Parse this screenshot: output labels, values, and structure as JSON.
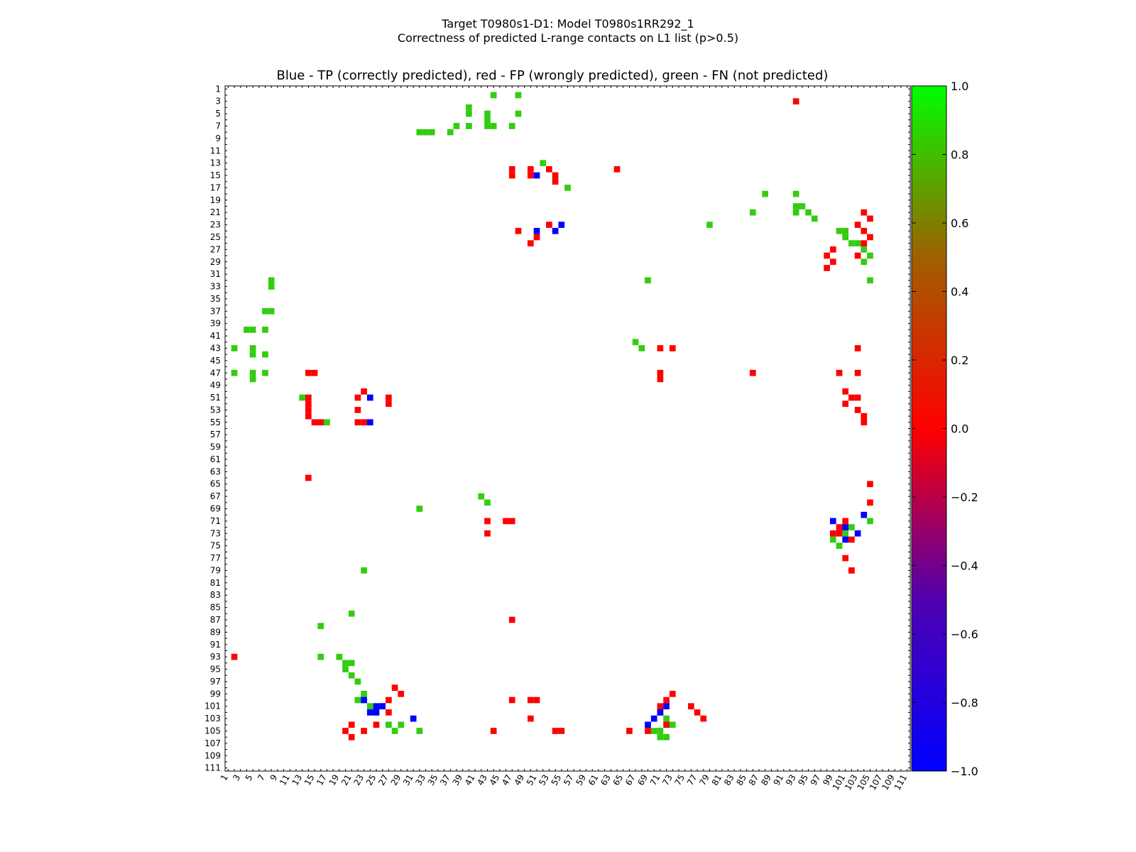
{
  "suptitle": [
    "Target T0980s1-D1: Model T0980s1RR292_1",
    "Correctness of predicted L-range contacts on L1 list (p>0.5)"
  ],
  "chart_data": {
    "type": "heatmap",
    "title": "Blue - TP (correctly predicted), red - FP (wrongly predicted), green - FN (not predicted)",
    "n": 111,
    "xlabel": "",
    "ylabel": "",
    "x_ticks": [
      1,
      3,
      5,
      7,
      9,
      11,
      13,
      15,
      17,
      19,
      21,
      23,
      25,
      27,
      29,
      31,
      33,
      35,
      37,
      39,
      41,
      43,
      45,
      47,
      49,
      51,
      53,
      55,
      57,
      59,
      61,
      63,
      65,
      67,
      69,
      71,
      73,
      75,
      77,
      79,
      81,
      83,
      85,
      87,
      89,
      91,
      93,
      95,
      97,
      99,
      101,
      103,
      105,
      107,
      109,
      111
    ],
    "y_ticks": [
      1,
      3,
      5,
      7,
      9,
      11,
      13,
      15,
      17,
      19,
      21,
      23,
      25,
      27,
      29,
      31,
      33,
      35,
      37,
      39,
      41,
      43,
      45,
      47,
      49,
      51,
      53,
      55,
      57,
      59,
      61,
      63,
      65,
      67,
      69,
      71,
      73,
      75,
      77,
      79,
      81,
      83,
      85,
      87,
      89,
      91,
      93,
      95,
      97,
      99,
      101,
      103,
      105,
      107,
      109,
      111
    ],
    "colorbar": {
      "range": [
        -1.0,
        1.0
      ],
      "ticks": [
        "1.0",
        "0.8",
        "0.6",
        "0.4",
        "0.2",
        "0.0",
        "−0.2",
        "−0.4",
        "−0.6",
        "−0.8",
        "−1.0"
      ]
    },
    "legend": {
      "TP": "blue (-1.0)",
      "FP": "red (0.0)",
      "FN": "green (1.0)"
    },
    "TP": [
      [
        15,
        51
      ],
      [
        23,
        55
      ],
      [
        24,
        51
      ],
      [
        24,
        54
      ],
      [
        51,
        24
      ],
      [
        55,
        24
      ],
      [
        101,
        25
      ],
      [
        102,
        24
      ],
      [
        100,
        23
      ],
      [
        103,
        31
      ],
      [
        102,
        25
      ],
      [
        101,
        26
      ],
      [
        71,
        99
      ],
      [
        70,
        104
      ],
      [
        73,
        103
      ],
      [
        74,
        101
      ],
      [
        72,
        101
      ],
      [
        101,
        72
      ],
      [
        102,
        71
      ],
      [
        103,
        70
      ],
      [
        104,
        69
      ]
    ],
    "FP": [
      [
        3,
        93
      ],
      [
        14,
        47
      ],
      [
        14,
        50
      ],
      [
        15,
        47
      ],
      [
        15,
        50
      ],
      [
        14,
        53
      ],
      [
        15,
        54
      ],
      [
        14,
        64
      ],
      [
        16,
        54
      ],
      [
        22,
        105
      ],
      [
        23,
        103
      ],
      [
        24,
        48
      ],
      [
        25,
        51
      ],
      [
        23,
        53
      ],
      [
        26,
        50
      ],
      [
        27,
        99
      ],
      [
        28,
        98
      ],
      [
        29,
        99
      ],
      [
        30,
        98
      ],
      [
        24,
        104
      ],
      [
        25,
        105
      ],
      [
        26,
        104
      ],
      [
        28,
        103
      ],
      [
        21,
        104
      ],
      [
        43,
        71
      ],
      [
        43,
        73
      ],
      [
        43,
        103
      ],
      [
        47,
        71
      ],
      [
        47,
        86
      ],
      [
        48,
        71
      ],
      [
        47,
        100
      ],
      [
        50,
        23
      ],
      [
        51,
        22
      ],
      [
        51,
        27
      ],
      [
        52,
        27
      ],
      [
        47,
        14
      ],
      [
        47,
        15
      ],
      [
        51,
        14
      ],
      [
        52,
        14
      ],
      [
        53,
        14
      ],
      [
        54,
        14
      ],
      [
        55,
        15
      ],
      [
        55,
        16
      ],
      [
        55,
        22
      ],
      [
        53,
        22
      ],
      [
        55,
        23
      ],
      [
        64,
        14
      ],
      [
        65,
        105
      ],
      [
        68,
        105
      ],
      [
        71,
        43
      ],
      [
        71,
        46
      ],
      [
        71,
        47
      ],
      [
        73,
        43
      ],
      [
        72,
        100
      ],
      [
        73,
        99
      ],
      [
        71,
        101
      ],
      [
        74,
        102
      ],
      [
        73,
        100
      ],
      [
        77,
        101
      ],
      [
        79,
        102
      ],
      [
        87,
        47
      ],
      [
        93,
        2
      ],
      [
        98,
        28
      ],
      [
        99,
        29
      ],
      [
        100,
        27
      ],
      [
        101,
        26
      ],
      [
        102,
        27
      ],
      [
        104,
        25
      ],
      [
        105,
        20
      ],
      [
        106,
        21
      ],
      [
        105,
        23
      ],
      [
        104,
        21
      ],
      [
        100,
        47
      ],
      [
        100,
        50
      ],
      [
        100,
        51
      ],
      [
        103,
        50
      ],
      [
        105,
        44
      ],
      [
        105,
        54
      ],
      [
        105,
        55
      ],
      [
        100,
        72
      ],
      [
        99,
        73
      ],
      [
        101,
        71
      ],
      [
        102,
        71
      ],
      [
        101,
        76
      ],
      [
        102,
        77
      ],
      [
        103,
        78
      ],
      [
        105,
        66
      ],
      [
        105,
        69
      ],
      [
        104,
        72
      ],
      [
        50,
        101
      ],
      [
        51,
        102
      ],
      [
        52,
        101
      ],
      [
        55,
        104
      ],
      [
        53,
        103
      ],
      [
        54,
        104
      ],
      [
        47,
        103
      ],
      [
        51,
        103
      ]
    ],
    "FN": [
      [
        2,
        44
      ],
      [
        2,
        48
      ],
      [
        5,
        40
      ],
      [
        5,
        43
      ],
      [
        5,
        48
      ],
      [
        4,
        40
      ],
      [
        6,
        43
      ],
      [
        7,
        38
      ],
      [
        7,
        40
      ],
      [
        7,
        43
      ],
      [
        7,
        44
      ],
      [
        7,
        47
      ],
      [
        8,
        32
      ],
      [
        8,
        33
      ],
      [
        8,
        34
      ],
      [
        8,
        37
      ],
      [
        13,
        52
      ],
      [
        17,
        56
      ],
      [
        18,
        88
      ],
      [
        18,
        93
      ],
      [
        20,
        93
      ],
      [
        20,
        94
      ],
      [
        21,
        93
      ],
      [
        21,
        95
      ],
      [
        21,
        86
      ],
      [
        22,
        96
      ],
      [
        23,
        79
      ],
      [
        24,
        100
      ],
      [
        24,
        101
      ],
      [
        25,
        101
      ],
      [
        26,
        102
      ],
      [
        26,
        103
      ],
      [
        27,
        104
      ],
      [
        28,
        105
      ],
      [
        29,
        104
      ],
      [
        32,
        8
      ],
      [
        33,
        8
      ],
      [
        32,
        69
      ],
      [
        32,
        105
      ],
      [
        37,
        7
      ],
      [
        37,
        8
      ],
      [
        40,
        4
      ],
      [
        40,
        5
      ],
      [
        40,
        7
      ],
      [
        42,
        67
      ],
      [
        43,
        68
      ],
      [
        43,
        2
      ],
      [
        43,
        5
      ],
      [
        44,
        5
      ],
      [
        44,
        7
      ],
      [
        47,
        2
      ],
      [
        47,
        5
      ],
      [
        48,
        5
      ],
      [
        47,
        7
      ],
      [
        51,
        13
      ],
      [
        55,
        17
      ],
      [
        67,
        42
      ],
      [
        68,
        43
      ],
      [
        69,
        32
      ],
      [
        71,
        105
      ],
      [
        72,
        102
      ],
      [
        73,
        101
      ],
      [
        74,
        99
      ],
      [
        75,
        100
      ],
      [
        79,
        23
      ],
      [
        86,
        21
      ],
      [
        88,
        16
      ],
      [
        93,
        16
      ],
      [
        93,
        19
      ],
      [
        94,
        20
      ],
      [
        94,
        21
      ],
      [
        95,
        20
      ],
      [
        96,
        21
      ],
      [
        97,
        22
      ],
      [
        99,
        23
      ],
      [
        100,
        22
      ],
      [
        100,
        23
      ],
      [
        101,
        24
      ],
      [
        102,
        25
      ],
      [
        104,
        27
      ],
      [
        105,
        28
      ],
      [
        104,
        29
      ],
      [
        105,
        32
      ],
      [
        103,
        72
      ],
      [
        104,
        73
      ],
      [
        105,
        70
      ],
      [
        105,
        71
      ],
      [
        106,
        71
      ],
      [
        106,
        72
      ]
    ]
  }
}
